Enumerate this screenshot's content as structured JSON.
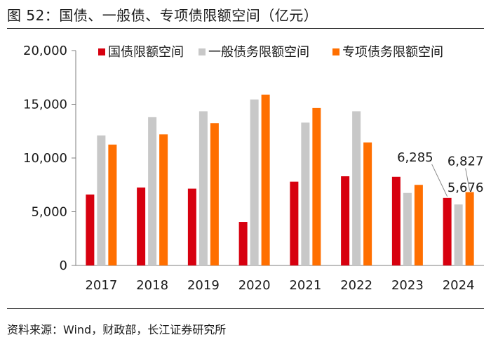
{
  "title": "图 52：国债、一般债、专项债限额空间（亿元）",
  "source": "资料来源：Wind，财政部，长江证券研究所",
  "chart_data": {
    "type": "bar",
    "categories": [
      "2017",
      "2018",
      "2019",
      "2020",
      "2021",
      "2022",
      "2023",
      "2024"
    ],
    "series": [
      {
        "name": "国债限额空间",
        "color": "#d7000f",
        "values": [
          6600,
          7250,
          7150,
          4050,
          7800,
          8300,
          8250,
          6285
        ]
      },
      {
        "name": "一般债务限额空间",
        "color": "#c8c8c8",
        "values": [
          12100,
          13800,
          14350,
          15450,
          13300,
          14350,
          6750,
          5676
        ]
      },
      {
        "name": "专项债务限额空间",
        "color": "#ff6f00",
        "values": [
          11250,
          12200,
          13250,
          15900,
          14650,
          11450,
          7500,
          6827
        ]
      }
    ],
    "ylim": [
      0,
      20000
    ],
    "yticks": [
      "0",
      "5,000",
      "10,000",
      "15,000",
      "20,000"
    ],
    "yticks_values": [
      0,
      5000,
      10000,
      15000,
      20000
    ],
    "annotations": [
      {
        "text": "6,285",
        "series": 0,
        "category": "2024"
      },
      {
        "text": "5,676",
        "series": 1,
        "category": "2024"
      },
      {
        "text": "6,827",
        "series": 2,
        "category": "2024"
      }
    ],
    "legend_position": "top"
  }
}
